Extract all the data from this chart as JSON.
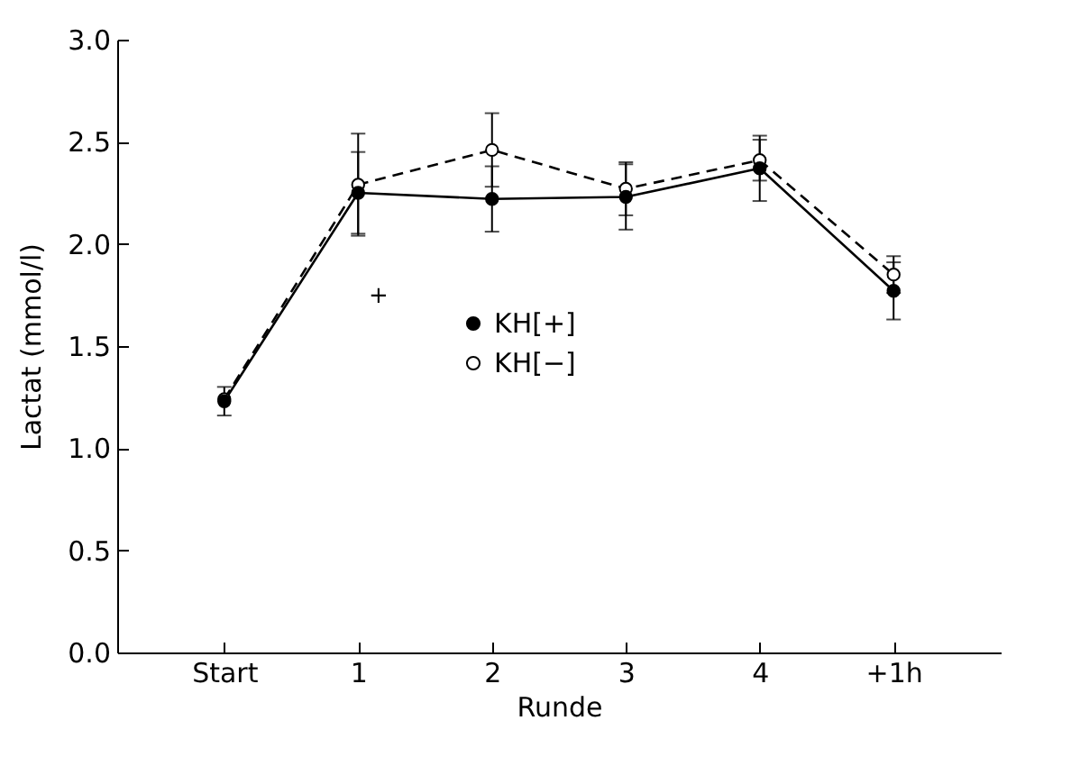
{
  "chart_data": {
    "type": "line",
    "xlabel": "Runde",
    "ylabel": "Lactat (mmol/l)",
    "categories": [
      "Start",
      "1",
      "2",
      "3",
      "4",
      "+1h"
    ],
    "series": [
      {
        "name": "KH[+]",
        "color": "#000000",
        "line_style": "solid",
        "values": [
          1.23,
          2.25,
          2.22,
          2.23,
          2.37,
          1.77
        ],
        "errors": [
          0.07,
          0.2,
          0.16,
          0.16,
          0.16,
          0.14
        ]
      },
      {
        "name": "KH[−]",
        "color": "#000000",
        "line_style": "dashed",
        "values": [
          1.24,
          2.29,
          2.46,
          2.27,
          2.41,
          1.85
        ],
        "errors": [
          null,
          0.25,
          0.18,
          0.13,
          0.1,
          0.09
        ]
      }
    ],
    "ylim": [
      0,
      3
    ],
    "yticks": [
      {
        "value": 0,
        "label": "0.0"
      },
      {
        "value": 0.5,
        "label": "0.5"
      },
      {
        "value": 1,
        "label": "1.0"
      },
      {
        "value": 1.5,
        "label": "1.5"
      },
      {
        "value": 2,
        "label": "2.0"
      },
      {
        "value": 2.5,
        "label": "2.5"
      },
      {
        "value": 3,
        "label": "3.0"
      }
    ],
    "marker": "circle",
    "legend": "center",
    "annotations": [
      "+"
    ]
  }
}
